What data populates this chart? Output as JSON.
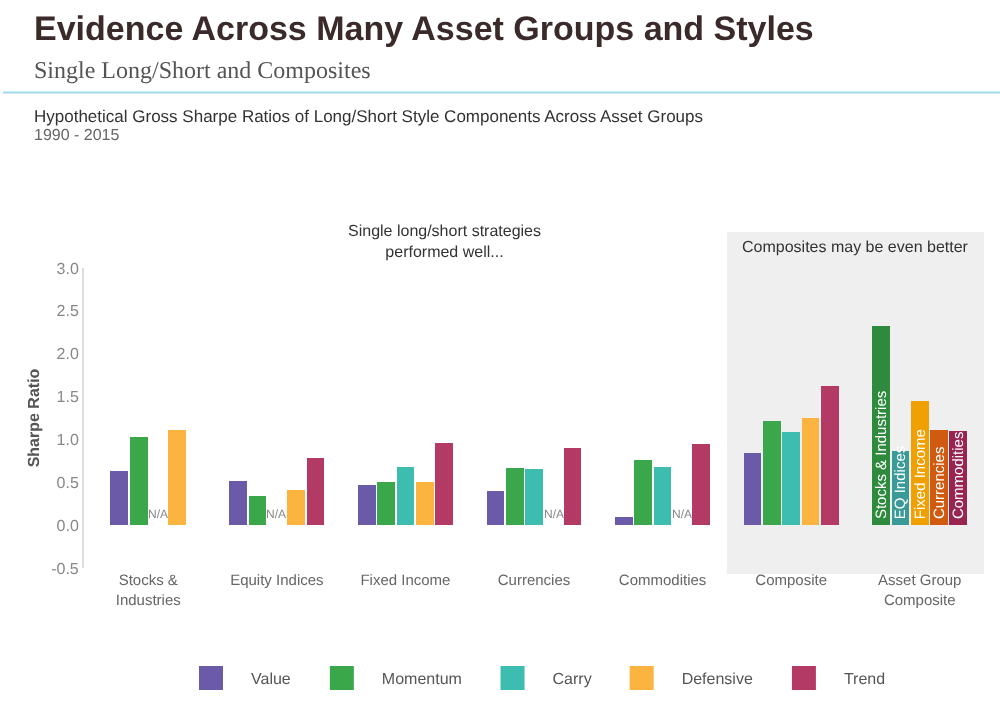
{
  "chart_data": {
    "type": "bar",
    "title": "Evidence Across Many Asset Groups and Styles",
    "subtitle": "Single Long/Short and Composites",
    "annotations": [
      "Hypothetical Gross Sharpe Ratios of Long/Short Style Components Across Asset Groups",
      "1990 - 2015",
      "Single long/short strategies performed well..."
    ],
    "ylabel": "Sharpe Ratio",
    "categories": [
      "Stocks & Industries",
      "Equity Indices",
      "Fixed Income",
      "Currencies",
      "Commodities",
      "Composite",
      "Asset Group Composite"
    ],
    "series": [
      {
        "name": "Value",
        "color": "#6a5aa8",
        "values": [
          0.63,
          0.51,
          0.47,
          0.4,
          0.1,
          0.84,
          null
        ]
      },
      {
        "name": "Momentum",
        "color": "#3aa84a",
        "values": [
          1.03,
          0.34,
          0.5,
          0.67,
          0.76,
          1.22,
          null
        ]
      },
      {
        "name": "Carry",
        "color": "#3dbcb0",
        "values": [
          null,
          null,
          0.68,
          0.66,
          0.68,
          1.09,
          null
        ],
        "value_labels": [
          "N/A",
          "N/A",
          null,
          null,
          null,
          null,
          null
        ]
      },
      {
        "name": "Defensive",
        "color": "#fbb440",
        "values": [
          1.11,
          0.41,
          0.5,
          null,
          null,
          1.25,
          null
        ],
        "value_labels": [
          null,
          null,
          null,
          "N/A",
          "N/A",
          null,
          null
        ]
      },
      {
        "name": "Trend",
        "color": "#b43a66",
        "values": [
          null,
          0.78,
          0.96,
          0.9,
          0.95,
          1.62,
          null
        ]
      },
      {
        "name": "Stocks & Industries",
        "color": "#2e8a3c",
        "values": [
          null,
          null,
          null,
          null,
          null,
          null,
          2.32
        ]
      },
      {
        "name": "EQ Indices",
        "color": "#3a9a98",
        "values": [
          null,
          null,
          null,
          null,
          null,
          null,
          0.86
        ]
      },
      {
        "name": "Fixed Income",
        "color": "#f0a000",
        "values": [
          null,
          null,
          null,
          null,
          null,
          null,
          1.45
        ]
      },
      {
        "name": "Currencies",
        "color": "#d05a10",
        "values": [
          null,
          null,
          null,
          null,
          null,
          null,
          1.11
        ]
      },
      {
        "name": "Commodities",
        "color": "#9a2450",
        "values": [
          null,
          null,
          null,
          null,
          null,
          null,
          1.1
        ]
      }
    ],
    "bands": [
      {
        "axis": "x",
        "from": "Composite",
        "to": "Asset Group Composite",
        "label": "Composites may be even better",
        "color": "#efefef"
      }
    ],
    "ylim": [
      -0.5,
      3.0
    ],
    "yticks": [
      {
        "value": -0.5,
        "label": "-0.5"
      },
      {
        "value": 0,
        "label": "0.0"
      },
      {
        "value": 0.5,
        "label": "0.5"
      },
      {
        "value": 1,
        "label": "1.0"
      },
      {
        "value": 1.5,
        "label": "1.5"
      },
      {
        "value": 2,
        "label": "2.0"
      },
      {
        "value": 2.5,
        "label": "2.5"
      },
      {
        "value": 3,
        "label": "3.0"
      }
    ],
    "grid": false,
    "legend": "bottom"
  }
}
